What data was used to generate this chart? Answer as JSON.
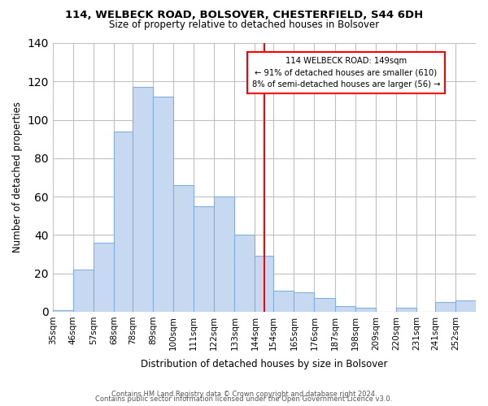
{
  "title": "114, WELBECK ROAD, BOLSOVER, CHESTERFIELD, S44 6DH",
  "subtitle": "Size of property relative to detached houses in Bolsover",
  "xlabel": "Distribution of detached houses by size in Bolsover",
  "ylabel": "Number of detached properties",
  "bar_labels": [
    "35sqm",
    "46sqm",
    "57sqm",
    "68sqm",
    "78sqm",
    "89sqm",
    "100sqm",
    "111sqm",
    "122sqm",
    "133sqm",
    "144sqm",
    "154sqm",
    "165sqm",
    "176sqm",
    "187sqm",
    "198sqm",
    "209sqm",
    "220sqm",
    "231sqm",
    "241sqm",
    "252sqm"
  ],
  "bar_values": [
    1,
    22,
    36,
    94,
    117,
    112,
    66,
    55,
    60,
    40,
    29,
    11,
    10,
    7,
    3,
    2,
    0,
    2,
    0,
    5,
    6
  ],
  "bar_color": "#c6d9f1",
  "bar_edge_color": "#7fb0e0",
  "property_line_x": 149,
  "annotation_title": "114 WELBECK ROAD: 149sqm",
  "annotation_line1": "← 91% of detached houses are smaller (610)",
  "annotation_line2": "8% of semi-detached houses are larger (56) →",
  "annotation_box_color": "white",
  "annotation_box_edge": "red",
  "vline_color": "red",
  "bin_edges": [
    35,
    46,
    57,
    68,
    78,
    89,
    100,
    111,
    122,
    133,
    144,
    154,
    165,
    176,
    187,
    198,
    209,
    220,
    231,
    241,
    252,
    263
  ],
  "ylim": [
    0,
    140
  ],
  "yticks": [
    0,
    20,
    40,
    60,
    80,
    100,
    120,
    140
  ],
  "footer_line1": "Contains HM Land Registry data © Crown copyright and database right 2024.",
  "footer_line2": "Contains public sector information licensed under the Open Government Licence v3.0.",
  "background_color": "#ffffff",
  "grid_color": "#c0c0c0"
}
